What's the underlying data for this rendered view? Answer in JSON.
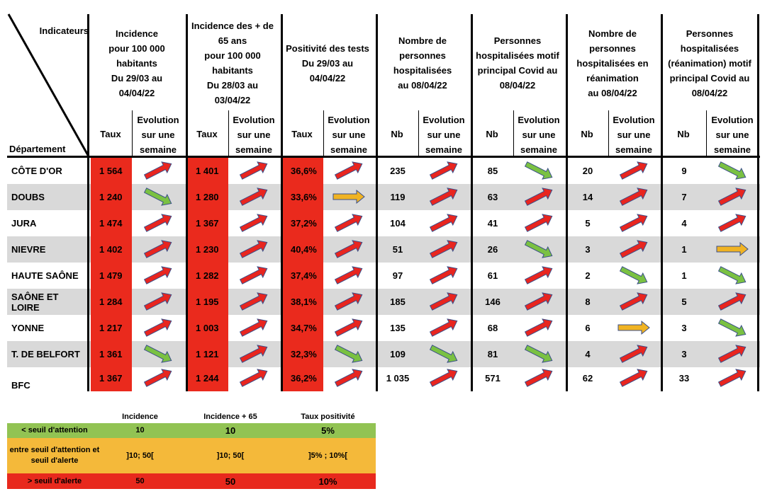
{
  "header": {
    "indicateurs": "Indicateurs",
    "departement": "Département",
    "groups": [
      {
        "title": "Incidence pour 100 000 habitants Du 29/03 au 04/04/22",
        "lines": [
          "Incidence",
          "pour 100 000",
          "habitants",
          "Du 29/03 au",
          "04/04/22"
        ],
        "value_label": "Taux",
        "evol_label": "Evolution sur une semaine"
      },
      {
        "title": "Incidence des + de 65 ans pour 100 000 habitants Du 28/03 au 03/04/22",
        "lines": [
          "Incidence des + de",
          "65 ans",
          "pour 100 000",
          "habitants",
          "Du 28/03 au",
          "03/04/22"
        ],
        "value_label": "Taux",
        "evol_label": "Evolution sur une semaine"
      },
      {
        "title": "Positivité des tests Du 29/03 au 04/04/22",
        "lines": [
          "Positivité des tests",
          "Du 29/03 au",
          "04/04/22"
        ],
        "value_label": "Taux",
        "evol_label": "Evolution sur une semaine"
      },
      {
        "title": "Nombre de personnes hospitalisées au 08/04/22",
        "lines": [
          "Nombre de",
          "personnes",
          "hospitalisées",
          "au 08/04/22"
        ],
        "value_label": "Nb",
        "evol_label": "Evolution sur une semaine"
      },
      {
        "title": "Personnes hospitalisées motif principal Covid au 08/04/22",
        "lines": [
          "Personnes",
          "hospitalisées motif",
          "principal Covid au",
          "08/04/22"
        ],
        "value_label": "Nb",
        "evol_label": "Evolution sur une semaine"
      },
      {
        "title": "Nombre de personnes hospitalisées en réanimation au 08/04/22",
        "lines": [
          "Nombre de",
          "personnes",
          "hospitalisées en",
          "réanimation",
          "au 08/04/22"
        ],
        "value_label": "Nb",
        "evol_label": "Evolution sur une semaine"
      },
      {
        "title": "Personnes hospitalisées (réanimation) motif principal Covid au 08/04/22",
        "lines": [
          "Personnes",
          "hospitalisées",
          "(réanimation) motif",
          "principal Covid au",
          "08/04/22"
        ],
        "value_label": "Nb",
        "evol_label": "Evolution sur une semaine"
      }
    ],
    "evol_lines": [
      "Evolution",
      "sur une",
      "semaine"
    ]
  },
  "arrow_colors": {
    "up": "#e8251f",
    "down": "#7ac142",
    "flat": "#f0b323"
  },
  "rows": [
    {
      "dept": "CÔTE D'OR",
      "values": [
        "1 564",
        "1 401",
        "36,6%",
        "235",
        "85",
        "20",
        "9"
      ],
      "arrows": [
        "up",
        "up",
        "up",
        "up",
        "down",
        "up",
        "down"
      ]
    },
    {
      "dept": "DOUBS",
      "values": [
        "1 240",
        "1 280",
        "33,6%",
        "119",
        "63",
        "14",
        "7"
      ],
      "arrows": [
        "down",
        "up",
        "flat",
        "up",
        "up",
        "up",
        "up"
      ]
    },
    {
      "dept": "JURA",
      "values": [
        "1 474",
        "1 367",
        "37,2%",
        "104",
        "41",
        "5",
        "4"
      ],
      "arrows": [
        "up",
        "up",
        "up",
        "up",
        "up",
        "up",
        "up"
      ]
    },
    {
      "dept": "NIEVRE",
      "values": [
        "1 402",
        "1 230",
        "40,4%",
        "51",
        "26",
        "3",
        "1"
      ],
      "arrows": [
        "up",
        "up",
        "up",
        "up",
        "down",
        "up",
        "flat"
      ]
    },
    {
      "dept": "HAUTE SAÔNE",
      "values": [
        "1 479",
        "1 282",
        "37,4%",
        "97",
        "61",
        "2",
        "1"
      ],
      "arrows": [
        "up",
        "up",
        "up",
        "up",
        "up",
        "down",
        "down"
      ]
    },
    {
      "dept": "SAÔNE ET LOIRE",
      "values": [
        "1 284",
        "1 195",
        "38,1%",
        "185",
        "146",
        "8",
        "5"
      ],
      "arrows": [
        "up",
        "up",
        "up",
        "up",
        "up",
        "up",
        "up"
      ]
    },
    {
      "dept": "YONNE",
      "values": [
        "1 217",
        "1 003",
        "34,7%",
        "135",
        "68",
        "6",
        "3"
      ],
      "arrows": [
        "up",
        "up",
        "up",
        "up",
        "up",
        "flat",
        "down"
      ]
    },
    {
      "dept": "T. DE BELFORT",
      "values": [
        "1 361",
        "1 121",
        "32,3%",
        "109",
        "81",
        "4",
        "3"
      ],
      "arrows": [
        "down",
        "up",
        "down",
        "down",
        "down",
        "up",
        "up"
      ]
    },
    {
      "dept": "BFC",
      "values": [
        "1 367",
        "1 244",
        "36,2%",
        "1 035",
        "571",
        "62",
        "33"
      ],
      "arrows": [
        "up",
        "up",
        "up",
        "up",
        "up",
        "up",
        "up"
      ]
    }
  ],
  "legend": {
    "headers": [
      "Incidence",
      "Incidence + 65",
      "Taux positivité"
    ],
    "rows": [
      {
        "label": "< seuil d'attention",
        "color": "#92c353",
        "values": [
          "10",
          "10",
          "5%"
        ]
      },
      {
        "label": "entre seuil d'attention et seuil d'alerte",
        "color": "#f4b93a",
        "values": [
          "]10; 50[",
          "]10; 50[",
          "]5% ; 10%["
        ]
      },
      {
        "label": "> seuil d'alerte",
        "color": "#e8291d",
        "values": [
          "50",
          "50",
          "10%"
        ]
      }
    ]
  }
}
